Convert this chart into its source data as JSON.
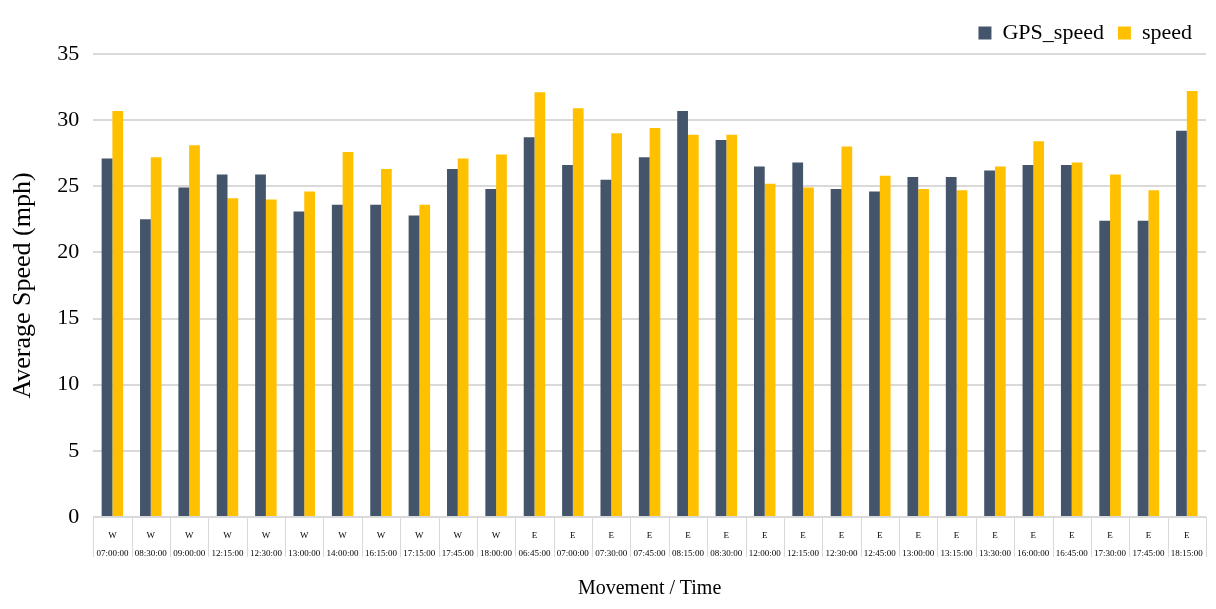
{
  "chart_data": {
    "type": "bar",
    "xlabel": "Movement / Time",
    "ylabel": "Average Speed (mph)",
    "categories": [
      "W\n07:00:00",
      "W\n08:30:00",
      "W\n09:00:00",
      "W\n12:15:00",
      "W\n12:30:00",
      "W\n13:00:00",
      "W\n14:00:00",
      "W\n16:15:00",
      "W\n17:15:00",
      "W\n17:45:00",
      "W\n18:00:00",
      "E\n06:45:00",
      "E\n07:00:00",
      "E\n07:30:00",
      "E\n07:45:00",
      "E\n08:15:00",
      "E\n08:30:00",
      "E\n12:00:00",
      "E\n12:15:00",
      "E\n12:30:00",
      "E\n12:45:00",
      "E\n13:00:00",
      "E\n13:15:00",
      "E\n13:30:00",
      "E\n16:00:00",
      "E\n16:45:00",
      "E\n17:30:00",
      "E\n17:45:00",
      "E\n18:15:00"
    ],
    "series": [
      {
        "name": "GPS_speed",
        "color": "#44546a",
        "values": [
          27.1,
          22.5,
          24.9,
          25.9,
          25.9,
          23.1,
          23.6,
          23.6,
          22.8,
          26.3,
          24.8,
          28.7,
          26.6,
          25.5,
          27.2,
          30.7,
          28.5,
          26.5,
          26.8,
          24.8,
          24.6,
          25.7,
          25.7,
          26.2,
          26.6,
          26.6,
          22.4,
          22.4,
          29.2
        ]
      },
      {
        "name": "speed",
        "color": "#ffc000",
        "values": [
          30.7,
          27.2,
          28.1,
          24.1,
          24.0,
          24.6,
          27.6,
          26.3,
          23.6,
          27.1,
          27.4,
          32.1,
          30.9,
          29.0,
          29.4,
          28.9,
          28.9,
          25.2,
          24.9,
          28.0,
          25.8,
          24.8,
          24.7,
          26.5,
          28.4,
          26.8,
          25.9,
          24.7,
          32.2
        ]
      }
    ],
    "ylim": [
      0,
      35
    ],
    "yticks": [
      0,
      5,
      10,
      15,
      20,
      25,
      30,
      35
    ],
    "grid": "y",
    "legend": "top right"
  }
}
